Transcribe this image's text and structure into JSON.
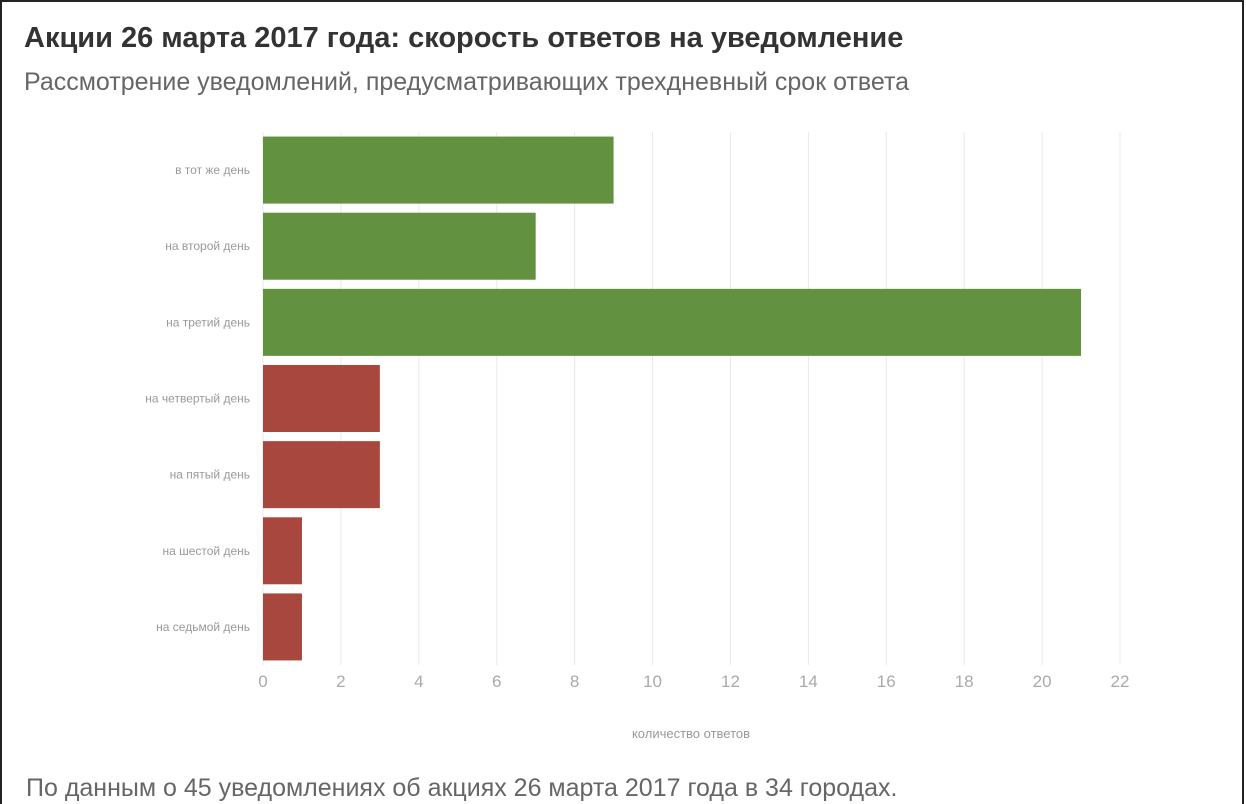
{
  "title": "Акции 26 марта 2017 года: скорость ответов на уведомление",
  "subtitle": "Рассмотрение уведомлений, предусматривающих трехдневный срок ответа",
  "footnote": "По данным о 45 уведомлениях об акциях 26 марта 2017 года в 34 городах.",
  "chart_data": {
    "type": "bar",
    "orientation": "horizontal",
    "categories": [
      "в тот же день",
      "на второй день",
      "на третий день",
      "на четвертый день",
      "на пятый день",
      "на шестой день",
      "на седьмой день"
    ],
    "values": [
      9,
      7,
      21,
      3,
      3,
      1,
      1
    ],
    "bar_colors": [
      "#629140",
      "#629140",
      "#629140",
      "#a8473d",
      "#a8473d",
      "#a8473d",
      "#a8473d"
    ],
    "xlabel": "количество ответов",
    "ylabel": "",
    "xlim": [
      0,
      22
    ],
    "xticks": [
      0,
      2,
      4,
      6,
      8,
      10,
      12,
      14,
      16,
      18,
      20,
      22
    ],
    "grid": true,
    "legend": "none"
  }
}
